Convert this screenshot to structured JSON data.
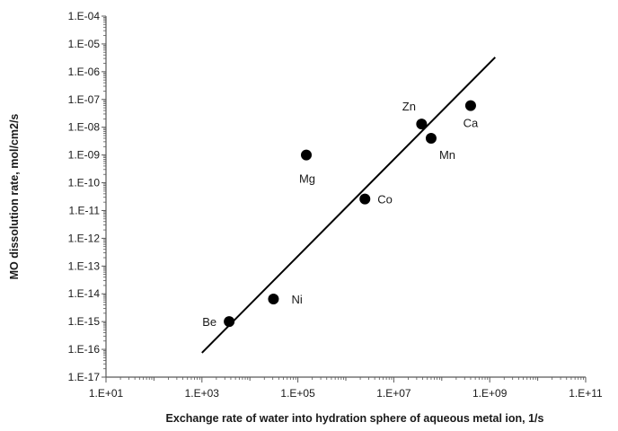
{
  "chart_data": {
    "type": "scatter",
    "title": "",
    "xlabel": "Exchange rate of water into hydration sphere of aqueous metal ion, 1/s",
    "ylabel": "MO dissolution rate, mol/cm2/s",
    "x_scale": "log",
    "y_scale": "log",
    "xlim": [
      10,
      100000000000
    ],
    "ylim": [
      1e-17,
      0.0001
    ],
    "x_tick_labels": [
      "1.E+01",
      "1.E+03",
      "1.E+05",
      "1.E+07",
      "1.E+09",
      "1.E+11"
    ],
    "y_tick_labels": [
      "1.E-17",
      "1.E-16",
      "1.E-15",
      "1.E-14",
      "1.E-13",
      "1.E-12",
      "1.E-11",
      "1.E-10",
      "1.E-09",
      "1.E-08",
      "1.E-07",
      "1.E-06",
      "1.E-05",
      "1.E-04"
    ],
    "grid": false,
    "legend": "none",
    "points": [
      {
        "label": "Be",
        "x": 3700,
        "y": 1e-15
      },
      {
        "label": "Ni",
        "x": 31000,
        "y": 6.5e-15
      },
      {
        "label": "Mg",
        "x": 150000,
        "y": 1e-09
      },
      {
        "label": "Co",
        "x": 2500000,
        "y": 2.6e-11
      },
      {
        "label": "Zn",
        "x": 38000000,
        "y": 1.3e-08
      },
      {
        "label": "Mn",
        "x": 60000000,
        "y": 4e-09
      },
      {
        "label": "Ca",
        "x": 400000000,
        "y": 6e-08
      }
    ],
    "fit_line": {
      "x": [
        1000,
        1300000000
      ],
      "y": [
        7.5e-17,
        3.3e-06
      ]
    },
    "colors": {
      "marker": "#000000",
      "line": "#000000",
      "axis": "#595959"
    }
  }
}
